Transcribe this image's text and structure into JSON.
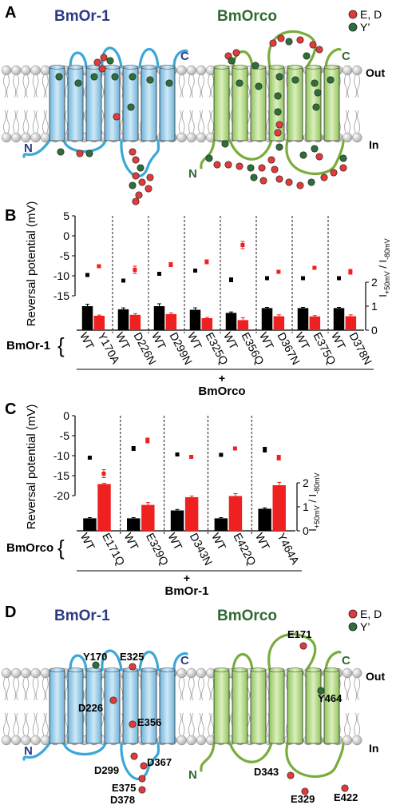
{
  "panel_labels": {
    "a": "A",
    "b": "B",
    "c": "C",
    "d": "D"
  },
  "proteins": {
    "or1": "BmOr-1",
    "orco": "BmOrco"
  },
  "legend": {
    "ed": "E, D",
    "y": "Y’"
  },
  "orientation": {
    "out": "Out",
    "in": "In",
    "n": "N",
    "c": "C"
  },
  "colors": {
    "or1_title": "#2c3a84",
    "orco_title": "#2f6a32",
    "or1_helix": "#9fd0ea",
    "orco_helix": "#b9de8a",
    "or1_loop": "#3ba7d8",
    "orco_loop": "#78ad3c",
    "ed_dot": "#e23a3a",
    "y_dot": "#2f6e3a",
    "wt_bar": "#000000",
    "mut_bar": "#ee2020"
  },
  "panel_d_residues": {
    "or1": [
      "Y170",
      "E325",
      "D226",
      "E356",
      "D299",
      "D367",
      "E375",
      "D378"
    ],
    "orco": [
      "E171",
      "Y464",
      "D343",
      "E329",
      "E422"
    ]
  },
  "chart_data": [
    {
      "type": "bar",
      "panel": "B",
      "categories": [
        "WT",
        "Y170A",
        "WT",
        "D226N",
        "WT",
        "D299N",
        "WT",
        "E325Q",
        "WT",
        "E356Q",
        "WT",
        "D367N",
        "WT",
        "E375Q",
        "WT",
        "D378N"
      ],
      "group_label": "BmOr-1",
      "partner_plus": "+",
      "partner": "BmOrco",
      "ylabel": "Reversal potential (mV)",
      "yticks": [
        "5",
        "0",
        "-5",
        "-10",
        "-15"
      ],
      "ylim": [
        -15,
        5
      ],
      "y2label_main": "I",
      "y2label_sub1": "+50mV",
      "y2label_mid": " / I",
      "y2label_sub2": "-80mV",
      "y2ticks": [
        "2",
        "1",
        "0"
      ],
      "y2lim": [
        0,
        2
      ],
      "reversal_potential": [
        -9.8,
        -7.6,
        -11.2,
        -8.5,
        -9.5,
        -7.2,
        -8.7,
        -6.5,
        -11.0,
        -2.3,
        -10.6,
        -9.0,
        -10.6,
        -8.0,
        -10.6,
        -9.0
      ],
      "reversal_error": [
        0.4,
        0.2,
        0.4,
        0.9,
        0.4,
        0.5,
        0.2,
        0.5,
        0.5,
        0.9,
        0.2,
        0.4,
        0.2,
        0.2,
        0.2,
        0.6
      ],
      "current_ratio": [
        1.0,
        0.6,
        0.87,
        0.64,
        1.0,
        0.67,
        0.85,
        0.5,
        0.72,
        0.42,
        0.92,
        0.58,
        0.92,
        0.57,
        0.92,
        0.58
      ],
      "current_ratio_error": [
        0.08,
        0.03,
        0.06,
        0.05,
        0.1,
        0.05,
        0.08,
        0.03,
        0.04,
        0.1,
        0.03,
        0.06,
        0.03,
        0.04,
        0.03,
        0.06
      ]
    },
    {
      "type": "bar",
      "panel": "C",
      "categories": [
        "WT",
        "E171Q",
        "WT",
        "E329Q",
        "WT",
        "D343N",
        "WT",
        "E422Q",
        "WT",
        "Y464A"
      ],
      "group_label": "BmOrco",
      "partner_plus": "+",
      "partner": "BmOr-1",
      "ylabel": "Reversal potential (mV)",
      "yticks": [
        "0",
        "-5",
        "-10",
        "-15",
        "-20"
      ],
      "ylim": [
        -20,
        0
      ],
      "y2label_main": "I",
      "y2label_sub1": "+50mV",
      "y2label_mid": " / I",
      "y2label_sub2": "-80mV",
      "y2ticks": [
        "2",
        "1",
        "0"
      ],
      "y2lim": [
        0,
        2
      ],
      "reversal_potential": [
        -10.5,
        -14.5,
        -8.2,
        -6.2,
        -9.7,
        -10.3,
        -9.8,
        -8.2,
        -8.5,
        -10.5
      ],
      "reversal_error": [
        0.2,
        1.0,
        0.5,
        0.6,
        0.2,
        0.2,
        0.2,
        0.3,
        0.6,
        0.6
      ],
      "current_ratio": [
        0.52,
        1.95,
        0.52,
        1.08,
        0.85,
        1.4,
        0.52,
        1.45,
        0.92,
        1.9
      ],
      "current_ratio_error": [
        0.03,
        0.03,
        0.03,
        0.1,
        0.04,
        0.05,
        0.03,
        0.1,
        0.04,
        0.12
      ]
    }
  ]
}
